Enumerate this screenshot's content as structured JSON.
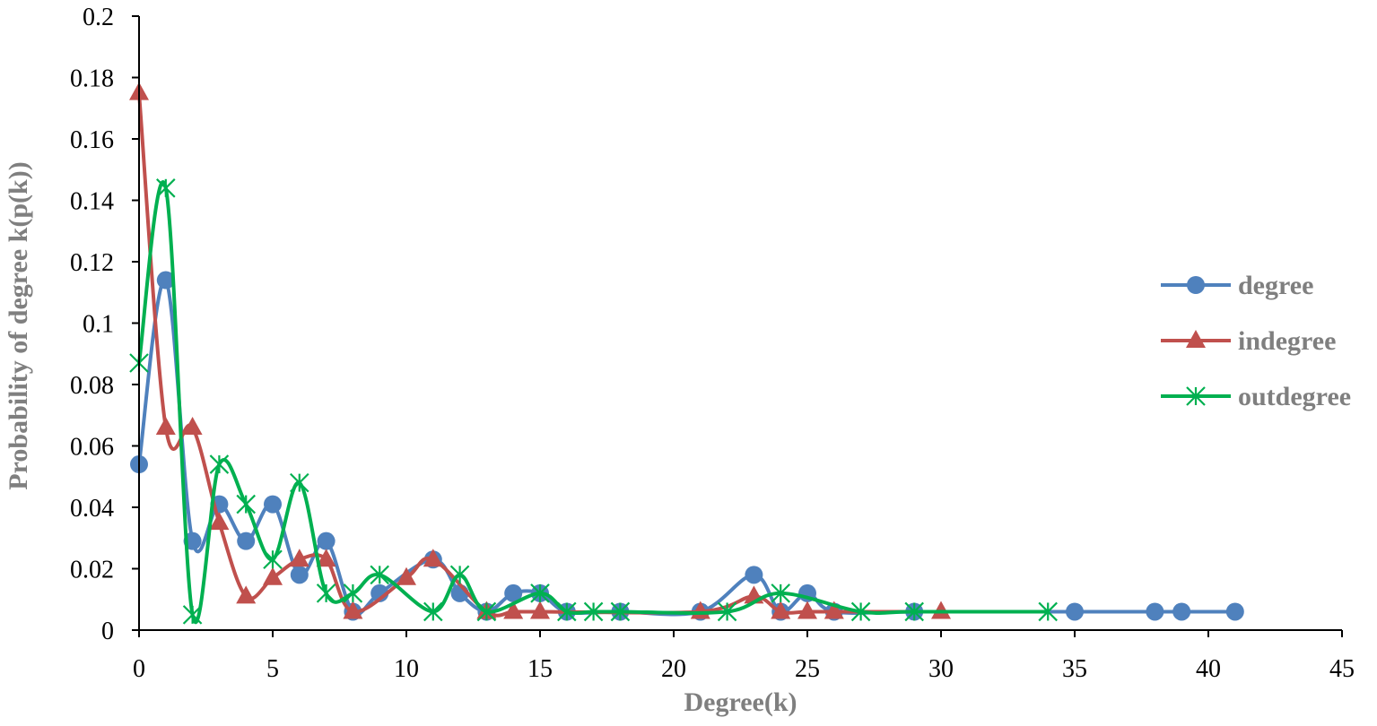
{
  "chart_data": {
    "type": "line",
    "smooth": true,
    "xlabel": "Degree(k)",
    "ylabel": "Probability of degree k(p(k))",
    "xlim": [
      0,
      45
    ],
    "ylim": [
      0,
      0.2
    ],
    "xticks": [
      "0",
      "5",
      "10",
      "15",
      "20",
      "25",
      "30",
      "35",
      "40",
      "45"
    ],
    "yticks": [
      "0",
      "0.02",
      "0.04",
      "0.06",
      "0.08",
      "0.1",
      "0.12",
      "0.14",
      "0.16",
      "0.18",
      "0.2"
    ],
    "legend_position": "right",
    "grid": false,
    "series": [
      {
        "name": "degree",
        "color": "#4f81bd",
        "marker": "circle",
        "points": [
          [
            0,
            0.054
          ],
          [
            1,
            0.114
          ],
          [
            2,
            0.029
          ],
          [
            3,
            0.041
          ],
          [
            4,
            0.029
          ],
          [
            5,
            0.041
          ],
          [
            6,
            0.018
          ],
          [
            7,
            0.029
          ],
          [
            8,
            0.006
          ],
          [
            9,
            0.012
          ],
          [
            11,
            0.023
          ],
          [
            12,
            0.012
          ],
          [
            13,
            0.006
          ],
          [
            14,
            0.012
          ],
          [
            15,
            0.012
          ],
          [
            16,
            0.006
          ],
          [
            18,
            0.006
          ],
          [
            21,
            0.006
          ],
          [
            23,
            0.018
          ],
          [
            24,
            0.006
          ],
          [
            25,
            0.012
          ],
          [
            26,
            0.006
          ],
          [
            29,
            0.006
          ],
          [
            35,
            0.006
          ],
          [
            38,
            0.006
          ],
          [
            39,
            0.006
          ],
          [
            41,
            0.006
          ]
        ]
      },
      {
        "name": "indegree",
        "color": "#c0504d",
        "marker": "triangle",
        "points": [
          [
            0,
            0.175
          ],
          [
            1,
            0.066
          ],
          [
            2,
            0.066
          ],
          [
            3,
            0.035
          ],
          [
            4,
            0.011
          ],
          [
            5,
            0.017
          ],
          [
            6,
            0.023
          ],
          [
            7,
            0.023
          ],
          [
            8,
            0.006
          ],
          [
            10,
            0.017
          ],
          [
            11,
            0.023
          ],
          [
            13,
            0.006
          ],
          [
            14,
            0.006
          ],
          [
            15,
            0.006
          ],
          [
            21,
            0.006
          ],
          [
            23,
            0.011
          ],
          [
            24,
            0.006
          ],
          [
            25,
            0.006
          ],
          [
            26,
            0.006
          ],
          [
            30,
            0.006
          ]
        ]
      },
      {
        "name": "outdegree",
        "color": "#00b050",
        "marker": "asterisk",
        "points": [
          [
            0,
            0.087
          ],
          [
            1,
            0.144
          ],
          [
            2,
            0.005
          ],
          [
            3,
            0.054
          ],
          [
            4,
            0.041
          ],
          [
            5,
            0.023
          ],
          [
            6,
            0.048
          ],
          [
            7,
            0.012
          ],
          [
            8,
            0.012
          ],
          [
            9,
            0.018
          ],
          [
            11,
            0.006
          ],
          [
            12,
            0.018
          ],
          [
            13,
            0.006
          ],
          [
            15,
            0.012
          ],
          [
            16,
            0.006
          ],
          [
            17,
            0.006
          ],
          [
            18,
            0.006
          ],
          [
            22,
            0.006
          ],
          [
            24,
            0.012
          ],
          [
            27,
            0.006
          ],
          [
            29,
            0.006
          ],
          [
            34,
            0.006
          ]
        ]
      }
    ]
  }
}
